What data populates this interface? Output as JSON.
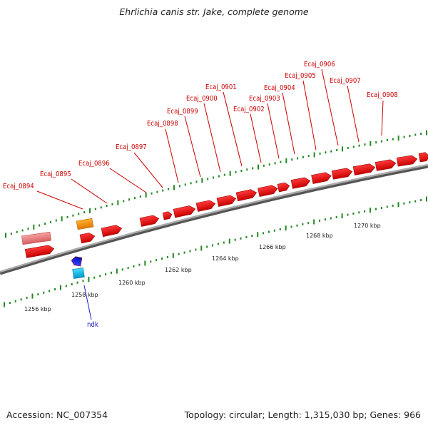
{
  "title": "Ehrlichia canis str. Jake, complete genome",
  "footer": {
    "accession": "Accession: NC_007354",
    "summary": "Topology: circular; Length: 1,315,030 bp; Genes: 966"
  },
  "scale_labels": [
    "1256 kbp",
    "1258 kbp",
    "1260 kbp",
    "1262 kbp",
    "1264 kbp",
    "1266 kbp",
    "1268 kbp",
    "1270 kbp"
  ],
  "genes_labeled": [
    "Ecaj_0894",
    "Ecaj_0895",
    "Ecaj_0896",
    "Ecaj_0897",
    "Ecaj_0898",
    "Ecaj_0899",
    "Ecaj_0900",
    "Ecaj_0901",
    "Ecaj_0902",
    "Ecaj_0903",
    "Ecaj_0904",
    "Ecaj_0905",
    "Ecaj_0906",
    "Ecaj_0907",
    "Ecaj_0908",
    "ndk"
  ],
  "colors": {
    "forward_gene": "#ee1111",
    "reverse_gene": "#f08080",
    "gene_label": "#cc0000",
    "other_gene": "#ffa020",
    "rna_gene": "#2255ee",
    "rna_gene_light": "#22ccee",
    "rna_label": "#2222cc",
    "tick": "#228822",
    "backbone": "#888888"
  }
}
